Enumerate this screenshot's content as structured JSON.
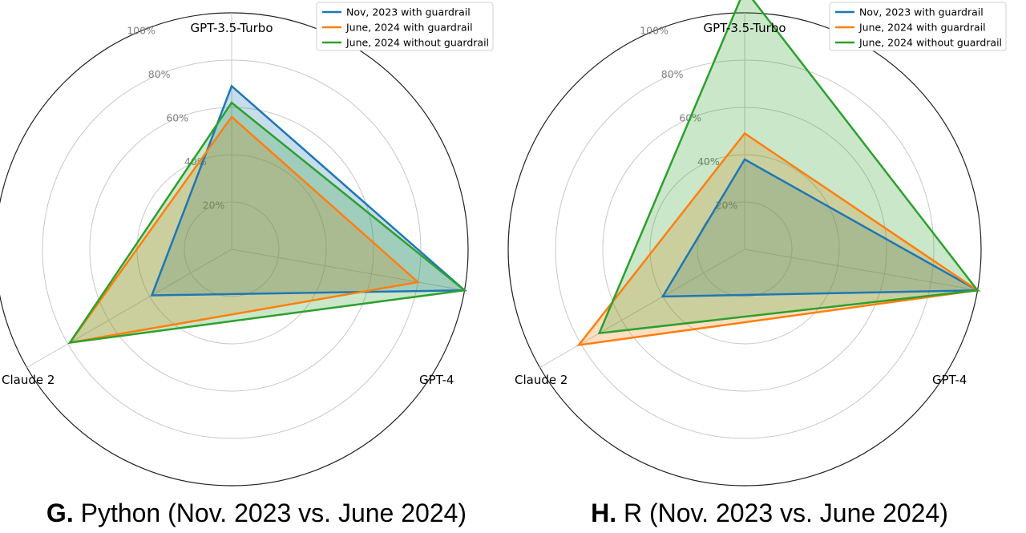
{
  "figures": [
    {
      "caption_letter": "G.",
      "caption_text": "Python (Nov. 2023 vs. June 2024)"
    },
    {
      "caption_letter": "H.",
      "caption_text": "R (Nov. 2023 vs. June 2024)"
    }
  ],
  "chart_data": [
    {
      "type": "radar",
      "categories": [
        "GPT-3.5-Turbo",
        "GPT-4",
        "Claude 2"
      ],
      "rlim": [
        0,
        100
      ],
      "radial_ticks": [
        20,
        40,
        60,
        80,
        100
      ],
      "radial_tick_labels": [
        "20%",
        "40%",
        "60%",
        "80%",
        "100%"
      ],
      "grid": true,
      "legend_position": "top-right",
      "series": [
        {
          "name": "Nov, 2023 with guardrail",
          "color": "#1f77b4",
          "values": [
            69,
            100,
            39
          ]
        },
        {
          "name": "June, 2024 with guardrail",
          "color": "#ff7f0e",
          "values": [
            56,
            80,
            79
          ]
        },
        {
          "name": "June, 2024 without guardrail",
          "color": "#2ca02c",
          "values": [
            62,
            100,
            79
          ]
        }
      ]
    },
    {
      "type": "radar",
      "categories": [
        "GPT-3.5-Turbo",
        "GPT-4",
        "Claude 2"
      ],
      "rlim": [
        0,
        100
      ],
      "radial_ticks": [
        20,
        40,
        60,
        80,
        100
      ],
      "radial_tick_labels": [
        "20%",
        "40%",
        "60%",
        "80%",
        "100%"
      ],
      "grid": true,
      "legend_position": "top-right",
      "series": [
        {
          "name": "Nov, 2023 with guardrail",
          "color": "#1f77b4",
          "values": [
            38,
            100,
            40
          ]
        },
        {
          "name": "June, 2024 with guardrail",
          "color": "#ff7f0e",
          "values": [
            49,
            100,
            81
          ]
        },
        {
          "name": "June, 2024 without guardrail",
          "color": "#2ca02c",
          "values": [
            110,
            100,
            71
          ]
        }
      ]
    }
  ]
}
